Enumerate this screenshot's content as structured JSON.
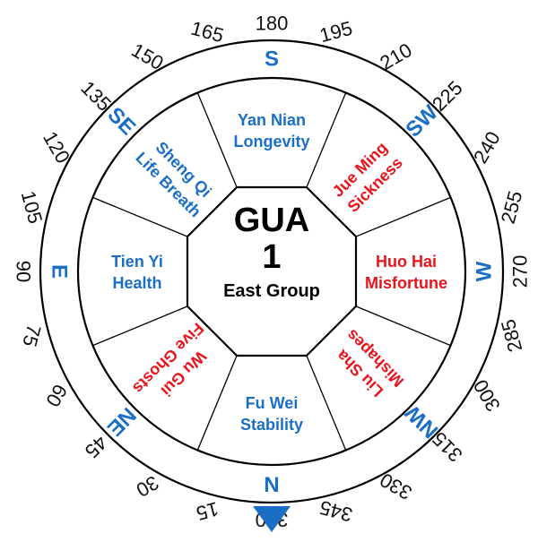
{
  "center": {
    "title": "GUA",
    "number": "1",
    "group": "East Group"
  },
  "colors": {
    "good": "#1a6fc4",
    "bad": "#e8141c",
    "direction": "#1a6fc4",
    "pointer": "#1a6fc4",
    "line": "#000000"
  },
  "directions": [
    {
      "label": "S",
      "bearing": 180
    },
    {
      "label": "SW",
      "bearing": 225
    },
    {
      "label": "W",
      "bearing": 270
    },
    {
      "label": "NW",
      "bearing": 315
    },
    {
      "label": "N",
      "bearing": 360
    },
    {
      "label": "NE",
      "bearing": 45
    },
    {
      "label": "E",
      "bearing": 90
    },
    {
      "label": "SE",
      "bearing": 135
    }
  ],
  "degree_marks": [
    "15",
    "30",
    "45",
    "60",
    "75",
    "90",
    "105",
    "120",
    "135",
    "150",
    "165",
    "180",
    "195",
    "210",
    "225",
    "240",
    "255",
    "270",
    "285",
    "300",
    "315",
    "330",
    "345",
    "360"
  ],
  "sectors": [
    {
      "id": "s",
      "line1": "Yan Nian",
      "line2": "Longevity",
      "tone": "good"
    },
    {
      "id": "sw",
      "line1": "Jue Ming",
      "line2": "Sickness",
      "tone": "bad"
    },
    {
      "id": "w",
      "line1": "Huo Hai",
      "line2": "Misfortune",
      "tone": "bad"
    },
    {
      "id": "nw",
      "line1": "Liu Sha",
      "line2": "Mishapes",
      "tone": "bad"
    },
    {
      "id": "n",
      "line1": "Fu Wei",
      "line2": "Stability",
      "tone": "good"
    },
    {
      "id": "ne",
      "line1": "Wu Gui",
      "line2": "Five Ghosts",
      "tone": "bad"
    },
    {
      "id": "e",
      "line1": "Tien Yi",
      "line2": "Health",
      "tone": "good"
    },
    {
      "id": "se",
      "line1": "Sheng Qi",
      "line2": "Life Breath",
      "tone": "good"
    }
  ]
}
